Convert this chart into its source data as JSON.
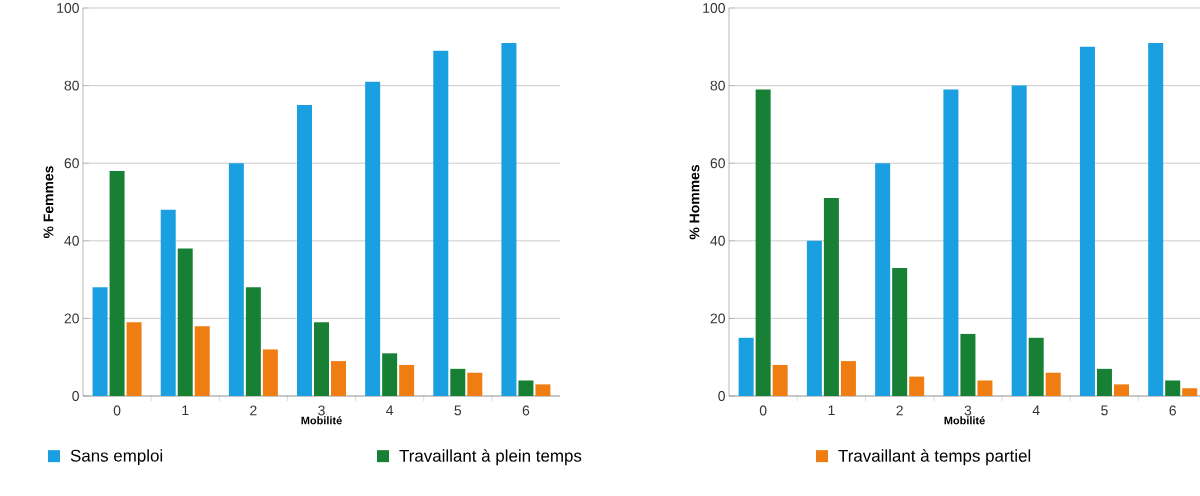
{
  "chart_data": [
    {
      "type": "bar",
      "categories": [
        "0",
        "1",
        "2",
        "3",
        "4",
        "5",
        "6"
      ],
      "xlabel": "Mobilité",
      "ylabel": "% Femmes",
      "ylim": [
        0,
        100
      ],
      "yticks": [
        0,
        20,
        40,
        60,
        80,
        100
      ],
      "grid": "y",
      "legend": "bottom",
      "series": [
        {
          "name": "Sans emploi",
          "color": "#1a9fe0",
          "values": [
            28,
            48,
            60,
            75,
            81,
            89,
            91
          ]
        },
        {
          "name": "Travaillant à plein temps",
          "color": "#178035",
          "values": [
            58,
            38,
            28,
            19,
            11,
            7,
            4
          ]
        },
        {
          "name": "Travaillant à temps partiel",
          "color": "#f07d12",
          "values": [
            19,
            18,
            12,
            9,
            8,
            6,
            3
          ]
        }
      ]
    },
    {
      "type": "bar",
      "categories": [
        "0",
        "1",
        "2",
        "3",
        "4",
        "5",
        "6"
      ],
      "xlabel": "Mobilité",
      "ylabel": "% Hommes",
      "ylim": [
        0,
        100
      ],
      "yticks": [
        0,
        20,
        40,
        60,
        80,
        100
      ],
      "grid": "y",
      "series": [
        {
          "color": "#1a9fe0",
          "values": [
            15,
            40,
            60,
            79,
            80,
            90,
            91
          ]
        },
        {
          "color": "#178035",
          "values": [
            79,
            51,
            33,
            16,
            15,
            7,
            4
          ]
        },
        {
          "color": "#f07d12",
          "values": [
            8,
            9,
            5,
            4,
            6,
            3,
            2
          ]
        }
      ]
    }
  ]
}
